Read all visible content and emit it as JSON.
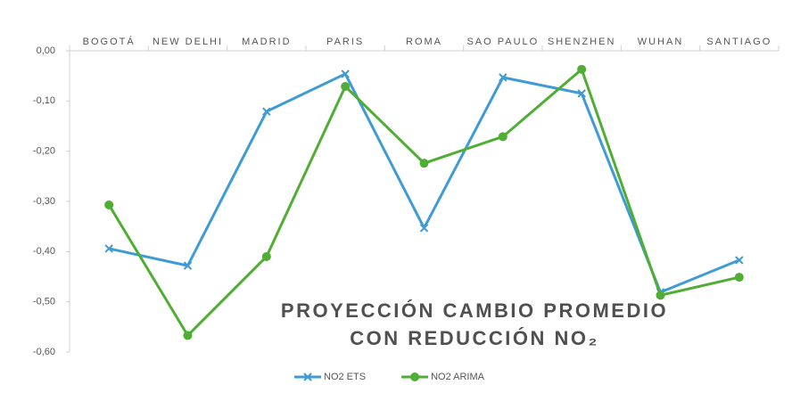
{
  "chart_data": {
    "type": "line",
    "title": [
      "PROYECCIÓN CAMBIO PROMEDIO",
      "CON REDUCCIÓN NO₂"
    ],
    "categories": [
      "BOGOTÁ",
      "NEW DELHI",
      "MADRID",
      "PARIS",
      "ROMA",
      "SAO PAULO",
      "SHENZHEN",
      "WUHAN",
      "SANTIAGO"
    ],
    "series": [
      {
        "name": "NO2 ETS",
        "color": "#3e9bd6",
        "marker": "x",
        "values": [
          -0.394,
          -0.428,
          -0.121,
          -0.046,
          -0.353,
          -0.053,
          -0.085,
          -0.481,
          -0.417
        ]
      },
      {
        "name": "NO2 ARIMA",
        "color": "#4fae33",
        "marker": "circle",
        "values": [
          -0.307,
          -0.567,
          -0.41,
          -0.071,
          -0.224,
          -0.171,
          -0.037,
          -0.487,
          -0.451
        ]
      }
    ],
    "ylim": [
      0,
      -0.6
    ],
    "yticks": [
      {
        "value": 0,
        "label": "0,00"
      },
      {
        "value": -0.1,
        "label": "-0,10"
      },
      {
        "value": -0.2,
        "label": "-0,20"
      },
      {
        "value": -0.3,
        "label": "-0,30"
      },
      {
        "value": -0.4,
        "label": "-0,40"
      },
      {
        "value": -0.5,
        "label": "-0,50"
      },
      {
        "value": -0.6,
        "label": "-0,60"
      }
    ],
    "legend": "bottom"
  }
}
